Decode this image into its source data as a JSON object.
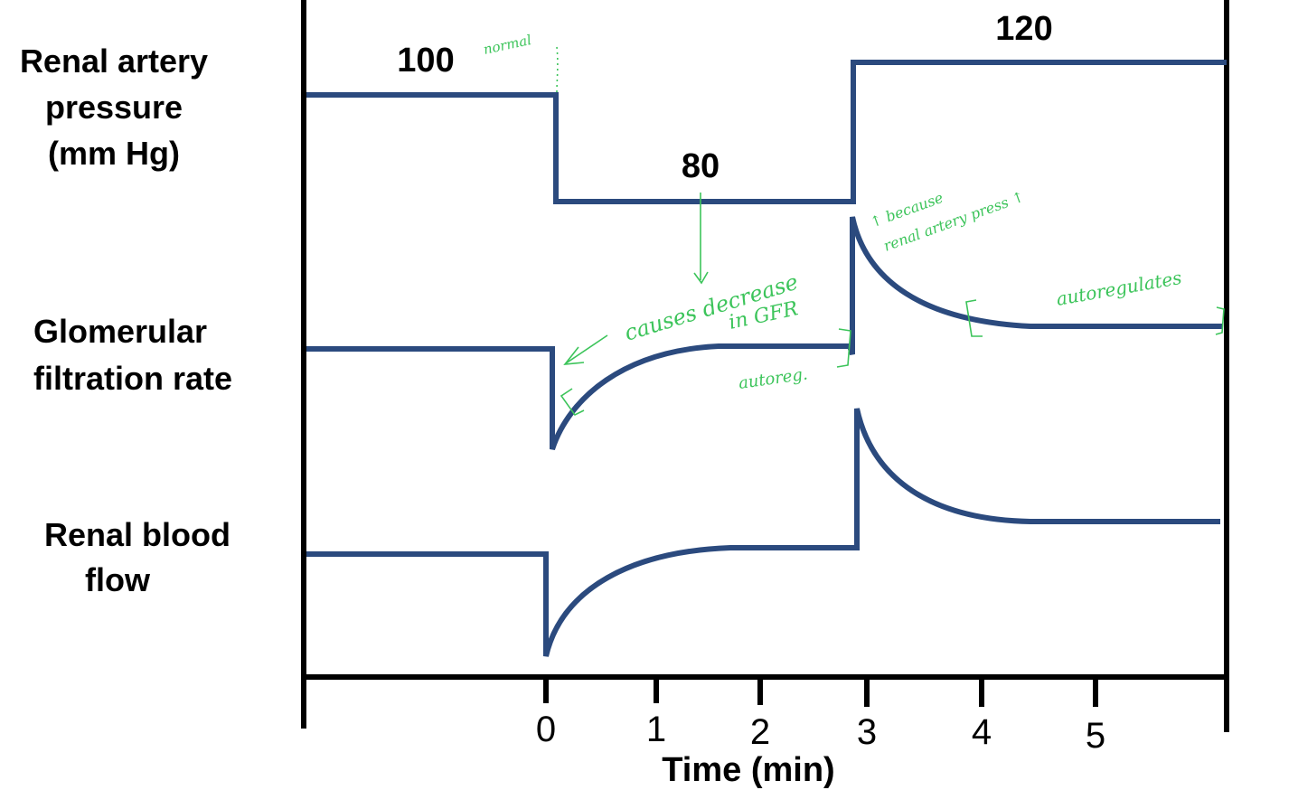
{
  "row_labels": {
    "pressure": [
      "Renal artery",
      "pressure",
      "(mm Hg)"
    ],
    "gfr": [
      "Glomerular",
      "filtration rate"
    ],
    "rbf": [
      "Renal blood",
      "flow"
    ]
  },
  "pressure_values": {
    "first": "100",
    "second": "80",
    "third": "120"
  },
  "axis": {
    "ticks": [
      "0",
      "1",
      "2",
      "3",
      "4",
      "5"
    ],
    "title": "Time (min)"
  },
  "annotations": {
    "normal": "normal",
    "causes_decrease_1": "causes decrease",
    "causes_decrease_2": "in GFR",
    "autoreg_short": "autoreg.",
    "because_1": "↑ because",
    "because_2": "renal artery press ↑",
    "autoregulates": "autoregulates"
  },
  "colors": {
    "trace": "#2b4a7e",
    "annotation": "#3cc45a",
    "frame": "#000000"
  }
}
